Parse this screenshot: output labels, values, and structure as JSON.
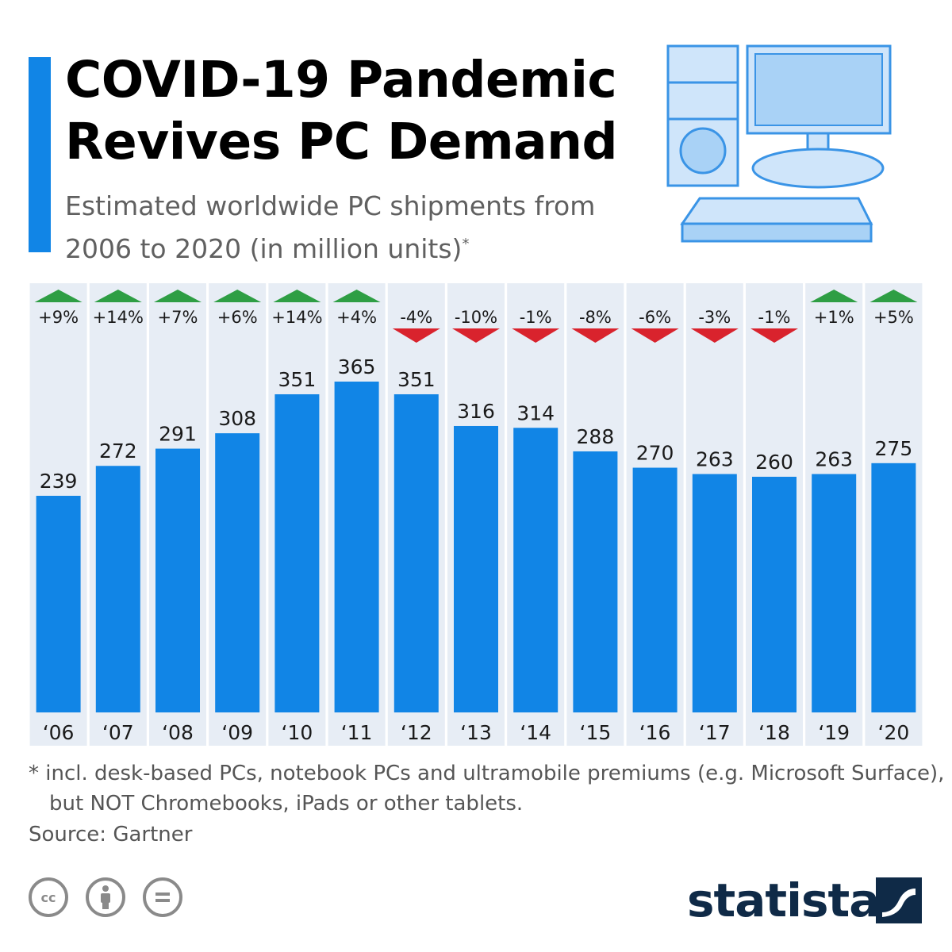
{
  "header": {
    "title": "COVID-19 Pandemic Revives PC Demand",
    "subtitle": "Estimated worldwide PC shipments from 2006 to 2020 (in million units)",
    "subtitle_mark": "*"
  },
  "illustration": {
    "icon": "desktop-computer-icon"
  },
  "chart_data": {
    "type": "bar",
    "categories": [
      "‘06",
      "‘07",
      "‘08",
      "‘09",
      "‘10",
      "‘11",
      "‘12",
      "‘13",
      "‘14",
      "‘15",
      "‘16",
      "‘17",
      "‘18",
      "‘19",
      "‘20"
    ],
    "values": [
      239,
      272,
      291,
      308,
      351,
      365,
      351,
      316,
      314,
      288,
      270,
      263,
      260,
      263,
      275
    ],
    "changes": [
      "+9%",
      "+14%",
      "+7%",
      "+6%",
      "+14%",
      "+4%",
      "-4%",
      "-10%",
      "-1%",
      "-8%",
      "-6%",
      "-3%",
      "-1%",
      "+1%",
      "+5%"
    ],
    "ylim": [
      0,
      365
    ],
    "grid": false,
    "colors": {
      "bar": "#1185e6",
      "up": "#2e9e44",
      "down": "#d9232d",
      "column_band": "#e7edf5"
    }
  },
  "footer": {
    "footnote": "* incl. desk-based PCs, notebook PCs and ultramobile premiums (e.g. Microsoft Surface), but NOT Chromebooks, iPads or other tablets.",
    "source": "Source: Gartner",
    "license_icons": [
      "cc-icon",
      "by-attribution-icon",
      "no-derivatives-icon"
    ],
    "brand": "statista"
  }
}
